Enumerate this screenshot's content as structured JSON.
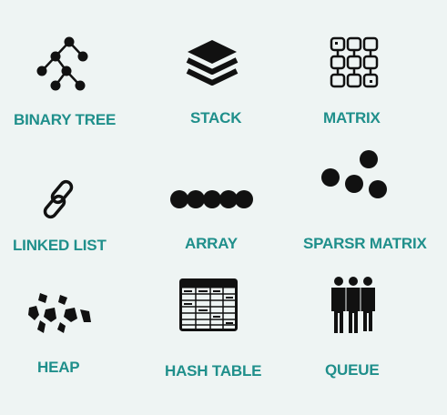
{
  "items": [
    {
      "label": "BINARY TREE",
      "icon": "binary-tree-icon"
    },
    {
      "label": "STACK",
      "icon": "stack-icon"
    },
    {
      "label": "MATRIX",
      "icon": "matrix-icon"
    },
    {
      "label": "LINKED LIST",
      "icon": "link-icon"
    },
    {
      "label": "ARRAY",
      "icon": "array-icon"
    },
    {
      "label": "SPARSR MATRIX",
      "icon": "sparse-matrix-icon"
    },
    {
      "label": "HEAP",
      "icon": "heap-icon"
    },
    {
      "label": "HASH TABLE",
      "icon": "hash-table-icon"
    },
    {
      "label": "QUEUE",
      "icon": "queue-icon"
    }
  ],
  "colors": {
    "label": "#1f8f8b",
    "icon": "#111111",
    "background": "#eef4f3"
  }
}
